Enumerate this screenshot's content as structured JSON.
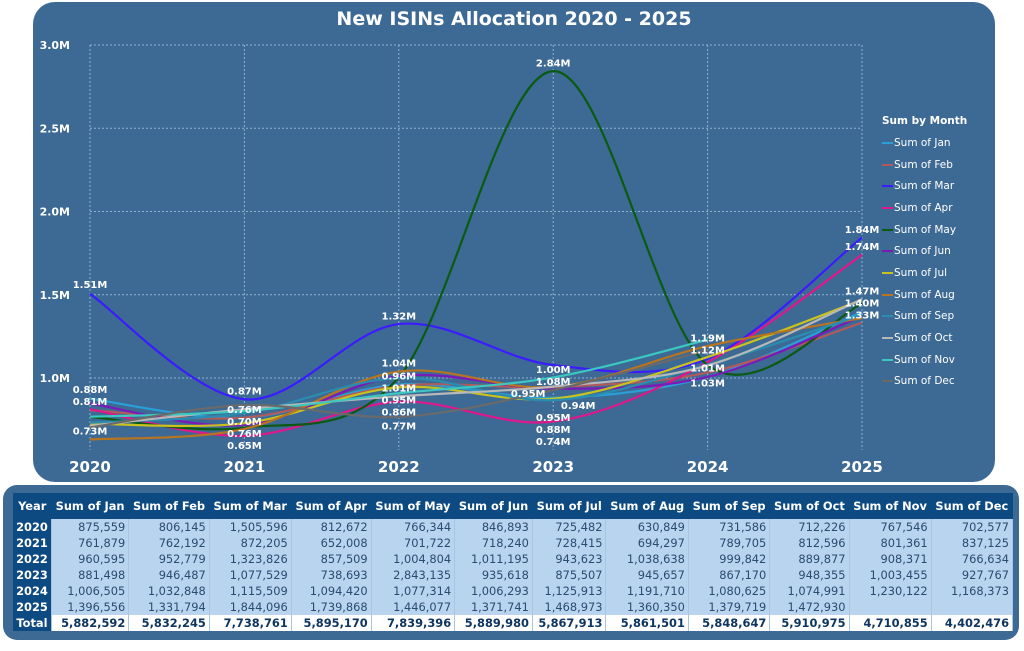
{
  "chart_data": {
    "type": "line",
    "title": "New ISINs Allocation 2020 - 2025",
    "x": [
      "2020",
      "2021",
      "2022",
      "2023",
      "2024",
      "2025"
    ],
    "ylim": [
      600000,
      3000000
    ],
    "yticks": [
      "1.0M",
      "1.5M",
      "2.0M",
      "2.5M",
      "3.0M"
    ],
    "ytick_values": [
      1000000,
      1500000,
      2000000,
      2500000,
      3000000
    ],
    "grid": true,
    "legend_title": "Sum by Month",
    "legend_position": "right",
    "series": [
      {
        "name": "Sum of Jan",
        "color": "#2a9fd6",
        "values": [
          875559,
          761879,
          960595,
          881498,
          1006505,
          1396556
        ]
      },
      {
        "name": "Sum of Feb",
        "color": "#b25a5a",
        "values": [
          806145,
          762192,
          952779,
          946487,
          1032848,
          1331794
        ]
      },
      {
        "name": "Sum of Mar",
        "color": "#3b1cff",
        "values": [
          1505596,
          872205,
          1323826,
          1077529,
          1115509,
          1844096
        ]
      },
      {
        "name": "Sum of Apr",
        "color": "#e0168c",
        "values": [
          812672,
          652008,
          857509,
          738693,
          1094420,
          1739868
        ]
      },
      {
        "name": "Sum of May",
        "color": "#0a5a12",
        "values": [
          766344,
          701722,
          1004804,
          2843135,
          1077314,
          1446077
        ]
      },
      {
        "name": "Sum of Jun",
        "color": "#7a1ab8",
        "values": [
          846893,
          718240,
          1011195,
          935618,
          1006293,
          1371741
        ]
      },
      {
        "name": "Sum of Jul",
        "color": "#c8c21e",
        "values": [
          725482,
          728415,
          943623,
          875507,
          1125913,
          1468973
        ]
      },
      {
        "name": "Sum of Aug",
        "color": "#b8741e",
        "values": [
          630849,
          694297,
          1038638,
          945657,
          1191710,
          1360350
        ]
      },
      {
        "name": "Sum of Sep",
        "color": "#2a8cb0",
        "values": [
          731586,
          789705,
          999842,
          867170,
          1080625,
          1379719
        ]
      },
      {
        "name": "Sum of Oct",
        "color": "#b8b8b8",
        "values": [
          712226,
          812596,
          889877,
          948355,
          1074991,
          1472930
        ]
      },
      {
        "name": "Sum of Nov",
        "color": "#3cc8c0",
        "values": [
          767546,
          801361,
          908371,
          1003455,
          1230122,
          null
        ]
      },
      {
        "name": "Sum of Dec",
        "color": "#6a6a6a",
        "values": [
          702577,
          837125,
          766634,
          927767,
          1168373,
          null
        ]
      }
    ],
    "data_labels": [
      {
        "x": "2020",
        "v": 1510000,
        "text": "1.51M"
      },
      {
        "x": "2020",
        "v": 880000,
        "text": "0.88M"
      },
      {
        "x": "2020",
        "v": 810000,
        "text": "0.81M"
      },
      {
        "x": "2020",
        "v": 630000,
        "text": "0.73M"
      },
      {
        "x": "2021",
        "v": 870000,
        "text": "0.87M"
      },
      {
        "x": "2021",
        "v": 760000,
        "text": "0.76M"
      },
      {
        "x": "2021",
        "v": 700000,
        "text": "0.70M"
      },
      {
        "x": "2021",
        "v": 640000,
        "text": "0.76M"
      },
      {
        "x": "2021",
        "v": 590000,
        "text": "0.65M"
      },
      {
        "x": "2022",
        "v": 1320000,
        "text": "1.32M"
      },
      {
        "x": "2022",
        "v": 1040000,
        "text": "1.04M"
      },
      {
        "x": "2022",
        "v": 960000,
        "text": "0.96M"
      },
      {
        "x": "2022",
        "v": 900000,
        "text": "1.01M"
      },
      {
        "x": "2022",
        "v": 850000,
        "text": "0.95M"
      },
      {
        "x": "2022",
        "v": 760000,
        "text": "0.86M"
      },
      {
        "x": "2022",
        "v": 660000,
        "text": "0.77M"
      },
      {
        "x": "2023",
        "v": 2840000,
        "text": "2.84M"
      },
      {
        "x": "2023",
        "v": 1000000,
        "text": "1.00M"
      },
      {
        "x": "2023",
        "v": 935000,
        "text": "1.08M"
      },
      {
        "x": "2023",
        "v": 905000,
        "text": "0.95M",
        "dx": -25
      },
      {
        "x": "2023",
        "v": 900000,
        "text": "0.94M",
        "dx": 25
      },
      {
        "x": "2023",
        "v": 860000,
        "text": "0.95M"
      },
      {
        "x": "2023",
        "v": 780000,
        "text": "0.88M"
      },
      {
        "x": "2023",
        "v": 630000,
        "text": "0.74M"
      },
      {
        "x": "2024",
        "v": 1190000,
        "text": "1.19M"
      },
      {
        "x": "2024",
        "v": 1120000,
        "text": "1.12M"
      },
      {
        "x": "2024",
        "v": 1010000,
        "text": "1.01M"
      },
      {
        "x": "2024",
        "v": 920000,
        "text": "1.03M"
      },
      {
        "x": "2025",
        "v": 1840000,
        "text": "1.84M"
      },
      {
        "x": "2025",
        "v": 1740000,
        "text": "1.74M"
      },
      {
        "x": "2025",
        "v": 1470000,
        "text": "1.47M"
      },
      {
        "x": "2025",
        "v": 1400000,
        "text": "1.40M"
      },
      {
        "x": "2025",
        "v": 1330000,
        "text": "1.33M"
      }
    ]
  },
  "table": {
    "headers": [
      "Year",
      "Sum of Jan",
      "Sum of Feb",
      "Sum of Mar",
      "Sum of Apr",
      "Sum of May",
      "Sum of Jun",
      "Sum of Jul",
      "Sum of Aug",
      "Sum of Sep",
      "Sum of Oct",
      "Sum of Nov",
      "Sum of Dec"
    ],
    "rows": [
      [
        "2020",
        "875,559",
        "806,145",
        "1,505,596",
        "812,672",
        "766,344",
        "846,893",
        "725,482",
        "630,849",
        "731,586",
        "712,226",
        "767,546",
        "702,577"
      ],
      [
        "2021",
        "761,879",
        "762,192",
        "872,205",
        "652,008",
        "701,722",
        "718,240",
        "728,415",
        "694,297",
        "789,705",
        "812,596",
        "801,361",
        "837,125"
      ],
      [
        "2022",
        "960,595",
        "952,779",
        "1,323,826",
        "857,509",
        "1,004,804",
        "1,011,195",
        "943,623",
        "1,038,638",
        "999,842",
        "889,877",
        "908,371",
        "766,634"
      ],
      [
        "2023",
        "881,498",
        "946,487",
        "1,077,529",
        "738,693",
        "2,843,135",
        "935,618",
        "875,507",
        "945,657",
        "867,170",
        "948,355",
        "1,003,455",
        "927,767"
      ],
      [
        "2024",
        "1,006,505",
        "1,032,848",
        "1,115,509",
        "1,094,420",
        "1,077,314",
        "1,006,293",
        "1,125,913",
        "1,191,710",
        "1,080,625",
        "1,074,991",
        "1,230,122",
        "1,168,373"
      ],
      [
        "2025",
        "1,396,556",
        "1,331,794",
        "1,844,096",
        "1,739,868",
        "1,446,077",
        "1,371,741",
        "1,468,973",
        "1,360,350",
        "1,379,719",
        "1,472,930",
        "",
        ""
      ]
    ],
    "total": [
      "Total",
      "5,882,592",
      "5,832,245",
      "7,738,761",
      "5,895,170",
      "7,839,396",
      "5,889,980",
      "5,867,913",
      "5,861,501",
      "5,848,647",
      "5,910,975",
      "4,710,855",
      "4,402,476"
    ]
  }
}
